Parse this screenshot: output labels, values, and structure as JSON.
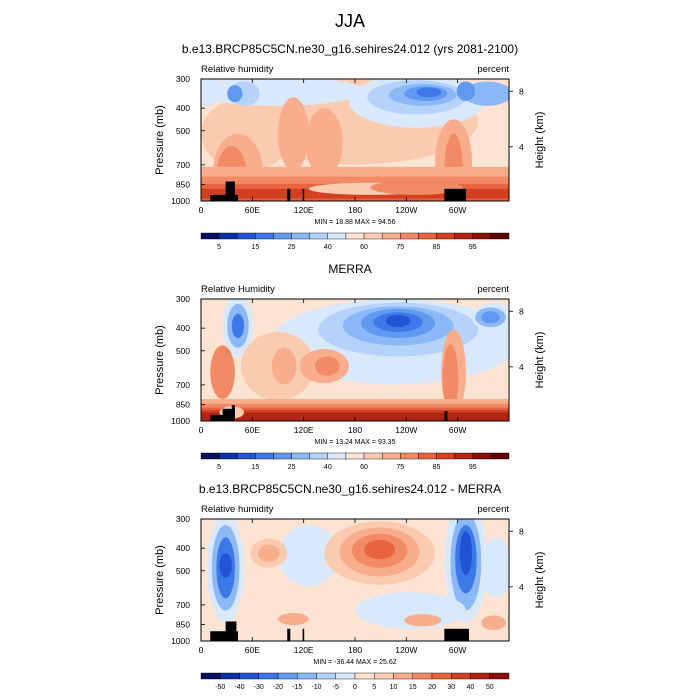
{
  "figure": {
    "title": "JJA"
  },
  "chart_data": [
    {
      "type": "heatmap",
      "title": "b.e13.BRCP85C5CN.ne30_g16.sehires24.012 (yrs 2081-2100)",
      "left_label": "Relative humidity",
      "right_label": "percent",
      "ylabel": "Pressure (mb)",
      "y2label": "Height (km)",
      "x_ticks": [
        "0",
        "60E",
        "120E",
        "180",
        "120W",
        "60W"
      ],
      "x_tick_lon": [
        0,
        60,
        120,
        180,
        240,
        300
      ],
      "xlim": [
        0,
        360
      ],
      "y_ticks": [
        "300",
        "400",
        "500",
        "700",
        "850",
        "1000"
      ],
      "y_tick_p": [
        300,
        400,
        500,
        700,
        850,
        1000
      ],
      "ylim": [
        1000,
        300
      ],
      "y2_ticks": [
        "8",
        "4"
      ],
      "y2_tick_km": [
        8,
        4
      ],
      "minmax": "MIN = 18.88  MAX = 94.56",
      "colorbar": {
        "labels": [
          "5",
          "15",
          "25",
          "40",
          "60",
          "75",
          "85",
          "95"
        ],
        "colors": [
          "#05105e",
          "#0c2fa6",
          "#2154d4",
          "#3c78e8",
          "#5f99f0",
          "#8bb8f6",
          "#b5d2fa",
          "#dae8fc",
          "#fde4d2",
          "#fbcbb0",
          "#f8ad8c",
          "#f28a66",
          "#e7643f",
          "#d34021",
          "#b32512",
          "#8a0f08",
          "#5e0603"
        ],
        "label_at_boundary": [
          1,
          3,
          5,
          7,
          9,
          11,
          13,
          15
        ]
      }
    },
    {
      "type": "heatmap",
      "title": "MERRA",
      "left_label": "Relative Humidity",
      "right_label": "percent",
      "ylabel": "Pressure (mb)",
      "y2label": "Height (km)",
      "x_ticks": [
        "0",
        "60E",
        "120E",
        "180",
        "120W",
        "60W"
      ],
      "x_tick_lon": [
        0,
        60,
        120,
        180,
        240,
        300
      ],
      "xlim": [
        0,
        360
      ],
      "y_ticks": [
        "300",
        "400",
        "500",
        "700",
        "850",
        "1000"
      ],
      "y_tick_p": [
        300,
        400,
        500,
        700,
        850,
        1000
      ],
      "ylim": [
        1000,
        300
      ],
      "y2_ticks": [
        "8",
        "4"
      ],
      "y2_tick_km": [
        8,
        4
      ],
      "minmax": "MIN = 13.24  MAX = 93.35",
      "colorbar": {
        "labels": [
          "5",
          "15",
          "25",
          "40",
          "60",
          "75",
          "85",
          "95"
        ],
        "colors": [
          "#05105e",
          "#0c2fa6",
          "#2154d4",
          "#3c78e8",
          "#5f99f0",
          "#8bb8f6",
          "#b5d2fa",
          "#dae8fc",
          "#fde4d2",
          "#fbcbb0",
          "#f8ad8c",
          "#f28a66",
          "#e7643f",
          "#d34021",
          "#b32512",
          "#8a0f08",
          "#5e0603"
        ],
        "label_at_boundary": [
          1,
          3,
          5,
          7,
          9,
          11,
          13,
          15
        ]
      }
    },
    {
      "type": "heatmap",
      "title": "b.e13.BRCP85C5CN.ne30_g16.sehires24.012 - MERRA",
      "left_label": "Relative humidity",
      "right_label": "percent",
      "ylabel": "Pressure (mb)",
      "y2label": "Height (km)",
      "x_ticks": [
        "0",
        "60E",
        "120E",
        "180",
        "120W",
        "60W"
      ],
      "x_tick_lon": [
        0,
        60,
        120,
        180,
        240,
        300
      ],
      "xlim": [
        0,
        360
      ],
      "y_ticks": [
        "300",
        "400",
        "500",
        "700",
        "850",
        "1000"
      ],
      "y_tick_p": [
        300,
        400,
        500,
        700,
        850,
        1000
      ],
      "ylim": [
        1000,
        300
      ],
      "y2_ticks": [
        "8",
        "4"
      ],
      "y2_tick_km": [
        8,
        4
      ],
      "minmax": "MIN = -36.44  MAX = 25.62",
      "colorbar": {
        "labels": [
          "-50",
          "-40",
          "-30",
          "-20",
          "-15",
          "-10",
          "-5",
          "0",
          "5",
          "10",
          "15",
          "20",
          "30",
          "40",
          "50"
        ],
        "colors": [
          "#05105e",
          "#0c2fa6",
          "#2154d4",
          "#3c78e8",
          "#5f99f0",
          "#8bb8f6",
          "#b5d2fa",
          "#dae8fc",
          "#fde4d2",
          "#fbcbb0",
          "#f8ad8c",
          "#f28a66",
          "#e7643f",
          "#d34021",
          "#b32512",
          "#8a0f08"
        ],
        "label_at_boundary": [
          1,
          2,
          3,
          4,
          5,
          6,
          7,
          8,
          9,
          10,
          11,
          12,
          13,
          14,
          15
        ]
      }
    }
  ]
}
